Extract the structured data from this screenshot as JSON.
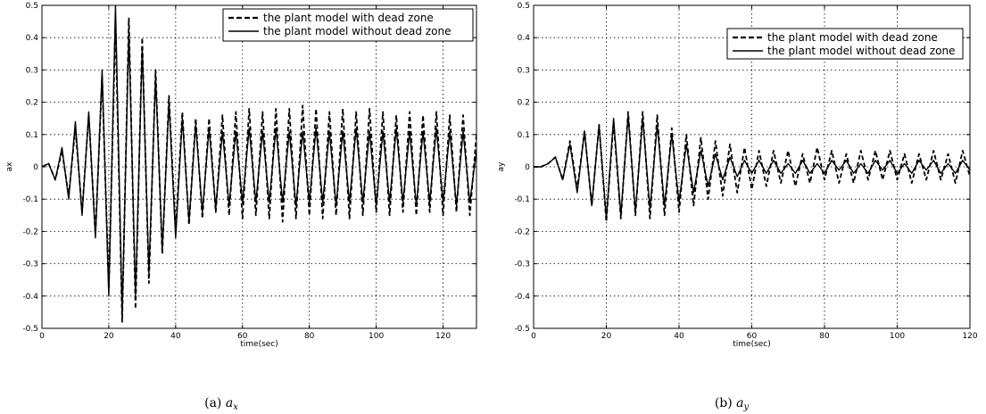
{
  "chart_data": [
    {
      "type": "line",
      "caption": "(a)",
      "caption_var": "a",
      "caption_sub": "x",
      "xlabel": "time(sec)",
      "ylabel": "ax",
      "xlim": [
        0,
        130
      ],
      "ylim": [
        -0.5,
        0.5
      ],
      "xticks": [
        0,
        20,
        40,
        60,
        80,
        100,
        120
      ],
      "yticks": [
        -0.5,
        -0.4,
        -0.3,
        -0.2,
        -0.1,
        0,
        0.1,
        0.2,
        0.3,
        0.4,
        0.5
      ],
      "xticklabels": [
        "0",
        "20",
        "40",
        "60",
        "80",
        "100",
        "120"
      ],
      "yticklabels": [
        "-0.5",
        "-0.4",
        "-0.3",
        "-0.2",
        "-0.1",
        "0",
        "0.1",
        "0.2",
        "0.3",
        "0.4",
        "0.5"
      ],
      "grid": true,
      "legend_position": "top-right",
      "series": [
        {
          "name": "the plant model with dead zone",
          "style": "dashed",
          "x": [
            0,
            2,
            4,
            6,
            8,
            10,
            12,
            14,
            16,
            18,
            20,
            22,
            24,
            26,
            28,
            30,
            32,
            34,
            36,
            38,
            40,
            42,
            44,
            46,
            48,
            50,
            52,
            54,
            56,
            58,
            60,
            62,
            64,
            66,
            68,
            70,
            72,
            74,
            76,
            78,
            80,
            82,
            84,
            86,
            88,
            90,
            92,
            94,
            96,
            98,
            100,
            102,
            104,
            106,
            108,
            110,
            112,
            114,
            116,
            118,
            120,
            122,
            124,
            126,
            128,
            130
          ],
          "y": [
            0,
            0.01,
            -0.04,
            0.05,
            -0.09,
            0.12,
            -0.14,
            0.16,
            -0.21,
            0.28,
            -0.38,
            0.45,
            -0.48,
            0.46,
            -0.44,
            0.4,
            -0.36,
            0.3,
            -0.27,
            0.22,
            -0.2,
            0.17,
            -0.18,
            0.15,
            -0.16,
            0.15,
            -0.14,
            0.16,
            -0.15,
            0.17,
            -0.16,
            0.18,
            -0.15,
            0.17,
            -0.16,
            0.18,
            -0.17,
            0.18,
            -0.16,
            0.19,
            -0.15,
            0.18,
            -0.16,
            0.17,
            -0.15,
            0.18,
            -0.16,
            0.17,
            -0.15,
            0.18,
            -0.14,
            0.17,
            -0.15,
            0.16,
            -0.14,
            0.17,
            -0.15,
            0.16,
            -0.14,
            0.17,
            -0.15,
            0.16,
            -0.14,
            0.16,
            -0.15,
            0.1
          ]
        },
        {
          "name": "the plant model without dead zone",
          "style": "solid",
          "x": [
            0,
            2,
            4,
            6,
            8,
            10,
            12,
            14,
            16,
            18,
            20,
            22,
            24,
            26,
            28,
            30,
            32,
            34,
            36,
            38,
            40,
            42,
            44,
            46,
            48,
            50,
            52,
            54,
            56,
            58,
            60,
            62,
            64,
            66,
            68,
            70,
            72,
            74,
            76,
            78,
            80,
            82,
            84,
            86,
            88,
            90,
            92,
            94,
            96,
            98,
            100,
            102,
            104,
            106,
            108,
            110,
            112,
            114,
            116,
            118,
            120,
            122,
            124,
            126,
            128,
            130
          ],
          "y": [
            0,
            0.01,
            -0.04,
            0.06,
            -0.1,
            0.14,
            -0.15,
            0.17,
            -0.22,
            0.3,
            -0.4,
            0.5,
            -0.46,
            0.42,
            -0.4,
            0.37,
            -0.33,
            0.28,
            -0.26,
            0.2,
            -0.22,
            0.15,
            -0.17,
            0.13,
            -0.14,
            0.12,
            -0.13,
            0.11,
            -0.12,
            0.11,
            -0.11,
            0.12,
            -0.11,
            0.11,
            -0.11,
            0.12,
            -0.11,
            0.11,
            -0.12,
            0.11,
            -0.11,
            0.12,
            -0.11,
            0.11,
            -0.12,
            0.11,
            -0.11,
            0.12,
            -0.11,
            0.11,
            -0.12,
            0.11,
            -0.11,
            0.12,
            -0.11,
            0.11,
            -0.12,
            0.11,
            -0.11,
            0.12,
            -0.11,
            0.11,
            -0.12,
            0.11,
            -0.11,
            0.05
          ]
        }
      ]
    },
    {
      "type": "line",
      "caption": "(b)",
      "caption_var": "a",
      "caption_sub": "y",
      "xlabel": "time(sec)",
      "ylabel": "ay",
      "xlim": [
        0,
        120
      ],
      "ylim": [
        -0.5,
        0.5
      ],
      "xticks": [
        0,
        20,
        40,
        60,
        80,
        100,
        120
      ],
      "yticks": [
        -0.5,
        -0.4,
        -0.3,
        -0.2,
        -0.1,
        0,
        0.1,
        0.2,
        0.3,
        0.4,
        0.5
      ],
      "xticklabels": [
        "0",
        "20",
        "40",
        "60",
        "80",
        "100",
        "120"
      ],
      "yticklabels": [
        "-0.5",
        "-0.4",
        "-0.3",
        "-0.2",
        "-0.1",
        "0",
        "0.1",
        "0.2",
        "0.3",
        "0.4",
        "0.5"
      ],
      "grid": true,
      "legend_position": "top-right",
      "series": [
        {
          "name": "the plant model with dead zone",
          "style": "dashed",
          "x": [
            0,
            2,
            4,
            6,
            8,
            10,
            12,
            14,
            16,
            18,
            20,
            22,
            24,
            26,
            28,
            30,
            32,
            34,
            36,
            38,
            40,
            42,
            44,
            46,
            48,
            50,
            52,
            54,
            56,
            58,
            60,
            62,
            64,
            66,
            68,
            70,
            72,
            74,
            76,
            78,
            80,
            82,
            84,
            86,
            88,
            90,
            92,
            94,
            96,
            98,
            100,
            102,
            104,
            106,
            108,
            110,
            112,
            114,
            116,
            118,
            120
          ],
          "y": [
            0,
            0.0,
            0.01,
            0.03,
            -0.04,
            0.08,
            -0.07,
            0.11,
            -0.12,
            0.13,
            -0.17,
            0.14,
            -0.16,
            0.17,
            -0.15,
            0.17,
            -0.16,
            0.16,
            -0.15,
            0.12,
            -0.14,
            0.1,
            -0.12,
            0.09,
            -0.1,
            0.08,
            -0.09,
            0.07,
            -0.08,
            0.06,
            -0.07,
            0.05,
            -0.06,
            0.05,
            -0.05,
            0.05,
            -0.06,
            0.04,
            -0.05,
            0.06,
            -0.04,
            0.05,
            -0.05,
            0.04,
            -0.05,
            0.05,
            -0.04,
            0.05,
            -0.04,
            0.05,
            -0.04,
            0.04,
            -0.05,
            0.04,
            -0.04,
            0.05,
            -0.04,
            0.04,
            -0.05,
            0.05,
            -0.03
          ]
        },
        {
          "name": "the plant model without dead zone",
          "style": "solid",
          "x": [
            0,
            2,
            4,
            6,
            8,
            10,
            12,
            14,
            16,
            18,
            20,
            22,
            24,
            26,
            28,
            30,
            32,
            34,
            36,
            38,
            40,
            42,
            44,
            46,
            48,
            50,
            52,
            54,
            56,
            58,
            60,
            62,
            64,
            66,
            68,
            70,
            72,
            74,
            76,
            78,
            80,
            82,
            84,
            86,
            88,
            90,
            92,
            94,
            96,
            98,
            100,
            102,
            104,
            106,
            108,
            110,
            112,
            114,
            116,
            118,
            120
          ],
          "y": [
            0,
            0.0,
            0.01,
            0.03,
            -0.04,
            0.07,
            -0.08,
            0.11,
            -0.12,
            0.13,
            -0.16,
            0.15,
            -0.15,
            0.16,
            -0.14,
            0.15,
            -0.13,
            0.13,
            -0.12,
            0.1,
            -0.11,
            0.07,
            -0.08,
            0.05,
            -0.06,
            0.04,
            -0.04,
            0.03,
            -0.03,
            0.02,
            -0.02,
            0.02,
            -0.02,
            0.02,
            -0.02,
            0.01,
            -0.02,
            0.02,
            -0.02,
            0.01,
            -0.02,
            0.02,
            -0.01,
            0.02,
            -0.02,
            0.01,
            -0.02,
            0.02,
            -0.01,
            0.02,
            -0.02,
            0.01,
            -0.02,
            0.02,
            -0.01,
            0.02,
            -0.02,
            0.01,
            -0.02,
            0.02,
            -0.01
          ]
        }
      ]
    }
  ]
}
